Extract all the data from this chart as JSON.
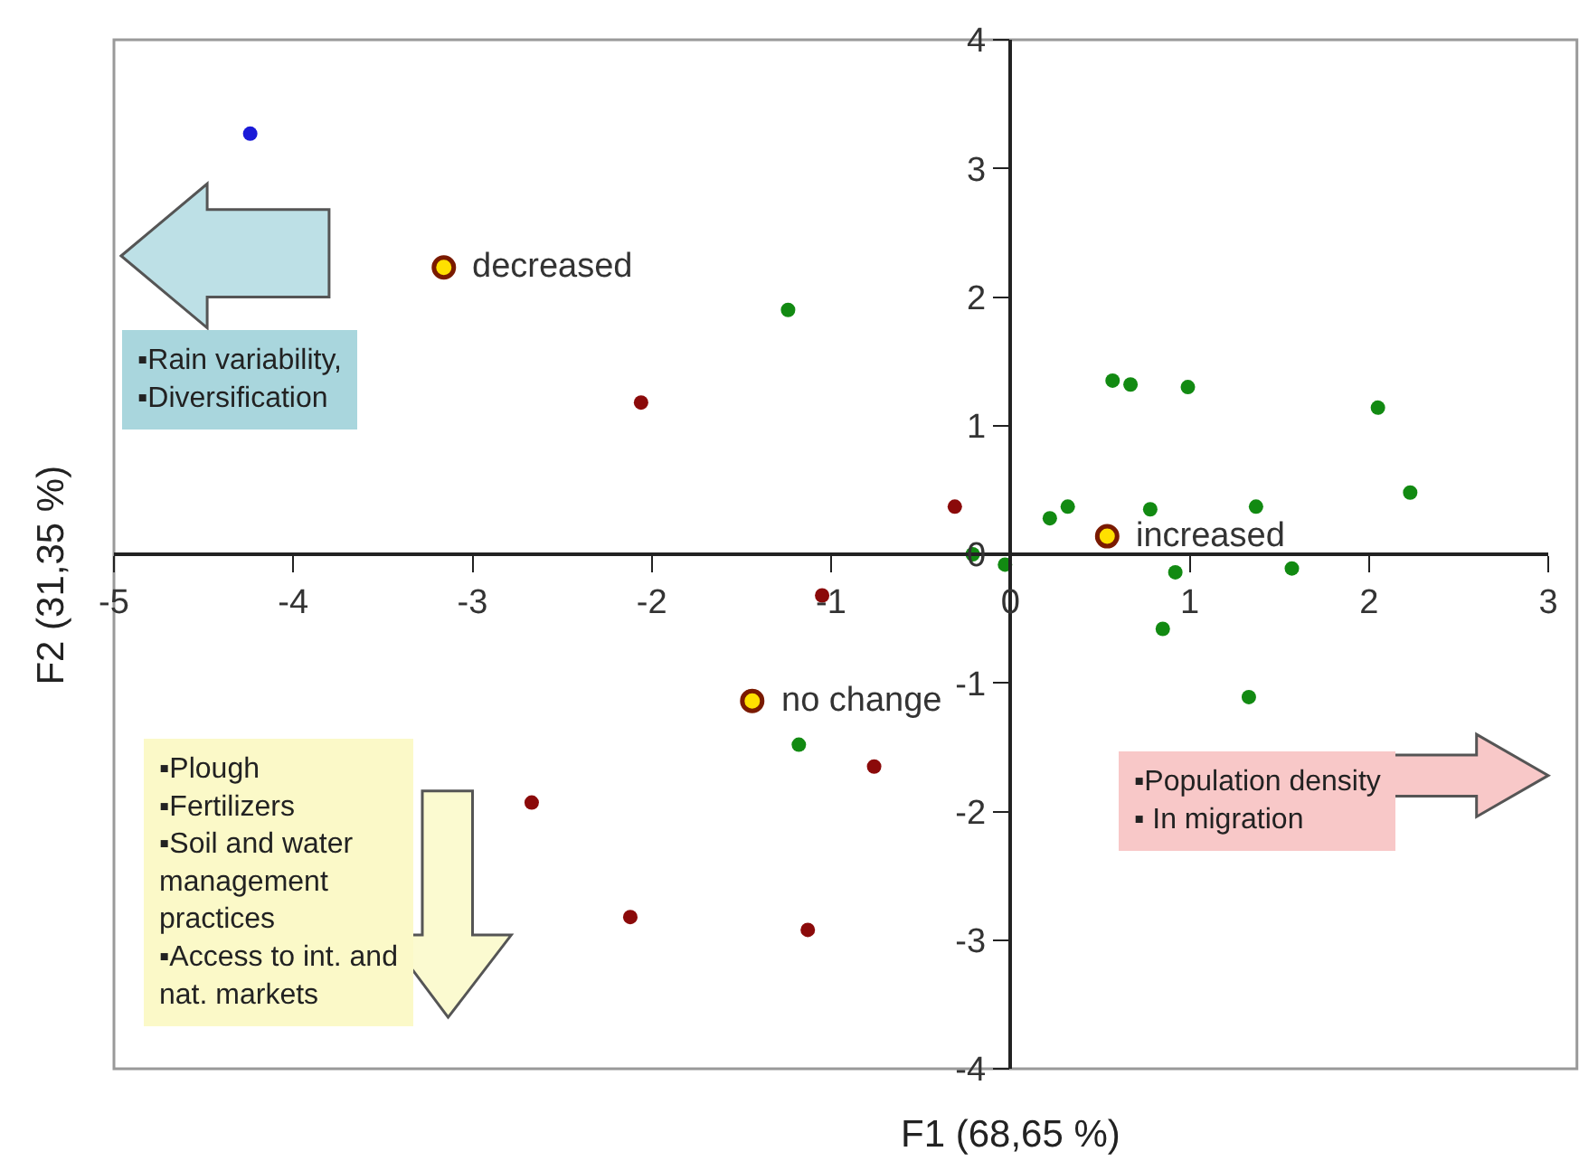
{
  "chart_data": {
    "type": "scatter",
    "xlabel": "F1 (68,65 %)",
    "ylabel": "F2 (31,35 %)",
    "xlim": [
      -5,
      3
    ],
    "ylim": [
      -4,
      4
    ],
    "xticks": [
      -5,
      -4,
      -3,
      -2,
      -1,
      0,
      1,
      2,
      3
    ],
    "yticks": [
      -4,
      -3,
      -2,
      -1,
      0,
      1,
      2,
      3,
      4
    ],
    "grid": false,
    "marker": "circle",
    "series": [
      {
        "color": "#1a1ad8",
        "x": [
          -4.24
        ],
        "values": [
          3.27
        ]
      },
      {
        "color": "#8b0a0a",
        "x": [
          -2.06,
          -0.31,
          -1.05,
          -0.76,
          -2.67,
          -2.12,
          -1.13
        ],
        "values": [
          1.18,
          0.37,
          -0.32,
          -1.65,
          -1.93,
          -2.82,
          -2.92
        ]
      },
      {
        "color": "#128a12",
        "x": [
          -1.24,
          -0.21,
          -0.03,
          0.22,
          0.32,
          0.57,
          0.67,
          0.99,
          0.78,
          0.92,
          1.37,
          1.57,
          2.05,
          2.23,
          0.85,
          1.33,
          -1.18
        ],
        "values": [
          1.9,
          0.0,
          -0.08,
          0.28,
          0.37,
          1.35,
          1.32,
          1.3,
          0.35,
          -0.14,
          0.37,
          -0.11,
          1.14,
          0.48,
          -0.58,
          -1.11,
          -1.48
        ]
      },
      {
        "color": "#ffe000",
        "x": [
          -3.16,
          0.54,
          -1.44
        ],
        "values": [
          2.23,
          0.14,
          -1.14
        ]
      }
    ],
    "annotations": [
      {
        "text": "decreased",
        "x": -3.16,
        "y": 2.23
      },
      {
        "text": "increased",
        "x": 0.54,
        "y": 0.14
      },
      {
        "text": "no change",
        "x": -1.44,
        "y": -1.14
      },
      "▪Rain variability,\n▪Diversification",
      "▪Plough\n▪Fertilizers\n▪Soil and water\nmanagement\npractices\n▪Access to int. and\nnat. markets",
      "▪Population density\n▪ In migration"
    ]
  }
}
